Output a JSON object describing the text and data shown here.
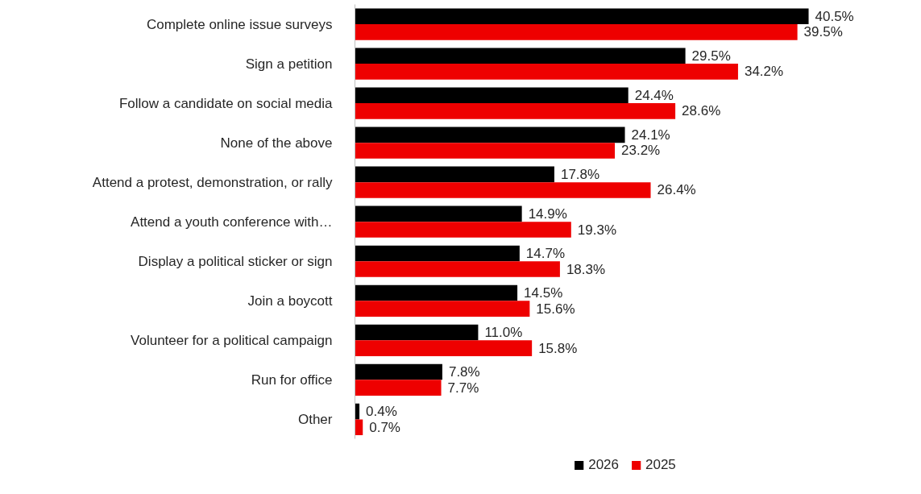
{
  "chart_data": {
    "type": "bar",
    "orientation": "horizontal",
    "legend": "bottom",
    "categories": [
      "Complete online issue surveys",
      "Sign a petition",
      "Follow a candidate on social media",
      "None of the above",
      "Attend a protest, demonstration, or rally",
      "Attend a youth conference with…",
      "Display a political sticker or sign",
      "Join a boycott",
      "Volunteer for a political campaign",
      "Run for office",
      "Other"
    ],
    "series": [
      {
        "name": "2026",
        "color": "#000000",
        "values": [
          40.5,
          29.5,
          24.4,
          24.1,
          17.8,
          14.9,
          14.7,
          14.5,
          11.0,
          7.8,
          0.4
        ],
        "value_labels": [
          "40.5%",
          "29.5%",
          "24.4%",
          "24.1%",
          "17.8%",
          "14.9%",
          "14.7%",
          "14.5%",
          "11.0%",
          "7.8%",
          "0.4%"
        ]
      },
      {
        "name": "2025",
        "color": "#ee0000",
        "values": [
          39.5,
          34.2,
          28.6,
          23.2,
          26.4,
          19.3,
          18.3,
          15.6,
          15.8,
          7.7,
          0.7
        ],
        "value_labels": [
          "39.5%",
          "34.2%",
          "28.6%",
          "23.2%",
          "26.4%",
          "19.3%",
          "18.3%",
          "15.6%",
          "15.8%",
          "7.7%",
          "0.7%"
        ]
      }
    ]
  }
}
